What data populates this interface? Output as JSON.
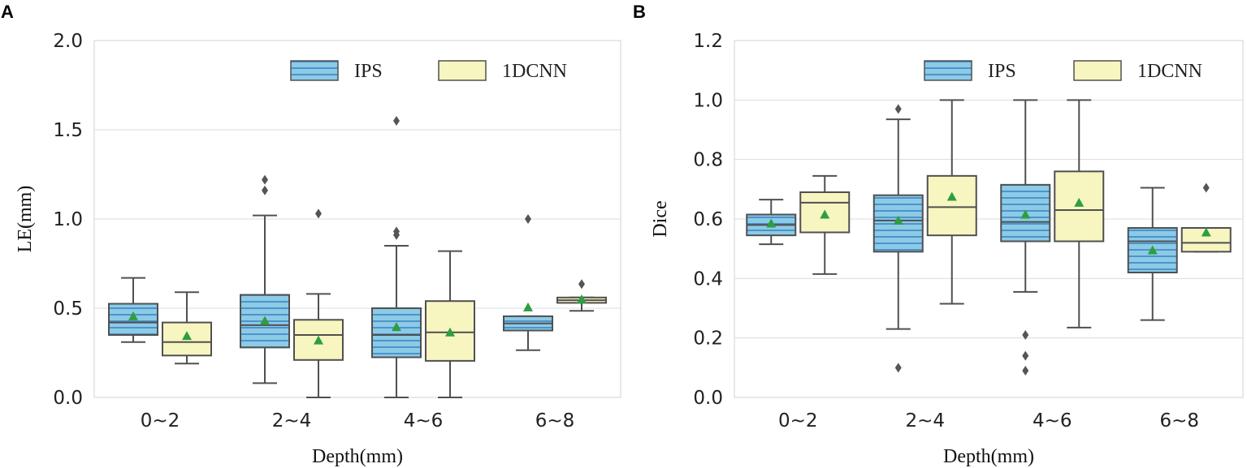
{
  "colors": {
    "ips_fill": "#8ccbe6",
    "ips_stripe": "#3f83c6",
    "cnn_fill": "#f7f5c0",
    "box_edge": "#505050",
    "grid": "#dcdcdc",
    "mean_marker": "#2e9e3e",
    "outlier": "#555555"
  },
  "chart_data": [
    {
      "panel": "A",
      "type": "box",
      "title": "",
      "xlabel": "Depth(mm)",
      "ylabel": "LE(mm)",
      "ylim": [
        0,
        2.0
      ],
      "yticks": [
        "0.0",
        "0.5",
        "1.0",
        "1.5",
        "2.0"
      ],
      "categories": [
        "0~2",
        "2~4",
        "4~6",
        "6~8"
      ],
      "legend": {
        "position": "top-right",
        "entries": [
          "IPS",
          "1DCNN"
        ]
      },
      "series": [
        {
          "name": "IPS",
          "boxes": [
            {
              "whislo": 0.31,
              "q1": 0.35,
              "med": 0.42,
              "q3": 0.525,
              "whishi": 0.67,
              "mean": 0.455,
              "fliers": []
            },
            {
              "whislo": 0.08,
              "q1": 0.28,
              "med": 0.405,
              "q3": 0.575,
              "whishi": 1.02,
              "mean": 0.43,
              "fliers": [
                1.16,
                1.22
              ]
            },
            {
              "whislo": 0.0,
              "q1": 0.225,
              "med": 0.35,
              "q3": 0.5,
              "whishi": 0.85,
              "mean": 0.395,
              "fliers": [
                0.91,
                0.93,
                1.55
              ]
            },
            {
              "whislo": 0.265,
              "q1": 0.375,
              "med": 0.415,
              "q3": 0.455,
              "whishi": 0.455,
              "mean": 0.505,
              "fliers": [
                1.0
              ]
            }
          ]
        },
        {
          "name": "1DCNN",
          "boxes": [
            {
              "whislo": 0.19,
              "q1": 0.235,
              "med": 0.31,
              "q3": 0.42,
              "whishi": 0.59,
              "mean": 0.345,
              "fliers": []
            },
            {
              "whislo": 0.0,
              "q1": 0.21,
              "med": 0.35,
              "q3": 0.435,
              "whishi": 0.58,
              "mean": 0.32,
              "fliers": [
                1.03
              ]
            },
            {
              "whislo": 0.0,
              "q1": 0.205,
              "med": 0.365,
              "q3": 0.54,
              "whishi": 0.82,
              "mean": 0.365,
              "fliers": []
            },
            {
              "whislo": 0.485,
              "q1": 0.53,
              "med": 0.545,
              "q3": 0.56,
              "whishi": 0.56,
              "mean": 0.55,
              "fliers": [
                0.635
              ]
            }
          ]
        }
      ]
    },
    {
      "panel": "B",
      "type": "box",
      "title": "",
      "xlabel": "Depth(mm)",
      "ylabel": "Dice",
      "ylim": [
        0,
        1.2
      ],
      "yticks": [
        "0.0",
        "0.2",
        "0.4",
        "0.6",
        "0.8",
        "1.0",
        "1.2"
      ],
      "categories": [
        "0~2",
        "2~4",
        "4~6",
        "6~8"
      ],
      "legend": {
        "position": "top-right",
        "entries": [
          "IPS",
          "1DCNN"
        ]
      },
      "series": [
        {
          "name": "IPS",
          "boxes": [
            {
              "whislo": 0.515,
              "q1": 0.545,
              "med": 0.58,
              "q3": 0.615,
              "whishi": 0.665,
              "mean": 0.585,
              "fliers": []
            },
            {
              "whislo": 0.23,
              "q1": 0.49,
              "med": 0.595,
              "q3": 0.68,
              "whishi": 0.935,
              "mean": 0.595,
              "fliers": [
                0.1,
                0.97
              ]
            },
            {
              "whislo": 0.355,
              "q1": 0.525,
              "med": 0.59,
              "q3": 0.715,
              "whishi": 1.0,
              "mean": 0.615,
              "fliers": [
                0.09,
                0.14,
                0.21
              ]
            },
            {
              "whislo": 0.26,
              "q1": 0.42,
              "med": 0.525,
              "q3": 0.57,
              "whishi": 0.705,
              "mean": 0.495,
              "fliers": []
            }
          ]
        },
        {
          "name": "1DCNN",
          "boxes": [
            {
              "whislo": 0.415,
              "q1": 0.555,
              "med": 0.655,
              "q3": 0.69,
              "whishi": 0.745,
              "mean": 0.615,
              "fliers": []
            },
            {
              "whislo": 0.315,
              "q1": 0.545,
              "med": 0.64,
              "q3": 0.745,
              "whishi": 1.0,
              "mean": 0.675,
              "fliers": []
            },
            {
              "whislo": 0.235,
              "q1": 0.525,
              "med": 0.63,
              "q3": 0.76,
              "whishi": 1.0,
              "mean": 0.655,
              "fliers": []
            },
            {
              "whislo": 0.49,
              "q1": 0.49,
              "med": 0.52,
              "q3": 0.57,
              "whishi": 0.57,
              "mean": 0.555,
              "fliers": [
                0.705
              ]
            }
          ]
        }
      ]
    }
  ]
}
